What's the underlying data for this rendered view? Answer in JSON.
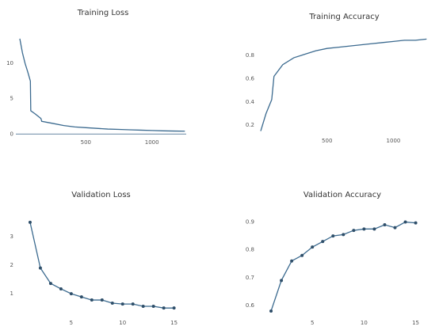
{
  "chart_data": [
    {
      "type": "line",
      "title": "Training Loss",
      "color": "#3b6a8f",
      "markers": false,
      "zeroline": true,
      "x": [
        0,
        20,
        40,
        60,
        80,
        83,
        120,
        160,
        166,
        250,
        333,
        416,
        500,
        583,
        666,
        750,
        833,
        916,
        1000,
        1083,
        1166,
        1250
      ],
      "values": [
        13.5,
        11.5,
        10,
        8.8,
        7.5,
        3.3,
        2.8,
        2.2,
        1.8,
        1.5,
        1.2,
        1.0,
        0.9,
        0.8,
        0.7,
        0.65,
        0.6,
        0.55,
        0.5,
        0.45,
        0.42,
        0.4
      ],
      "xlim": [
        0,
        1260
      ],
      "xticks": [
        500,
        1000
      ],
      "ylim": [
        -0.3,
        14.5
      ],
      "yticks": [
        0,
        5,
        10
      ]
    },
    {
      "type": "line",
      "title": "Training Accuracy",
      "color": "#3b6a8f",
      "markers": false,
      "zeroline": false,
      "x": [
        0,
        40,
        83,
        100,
        166,
        250,
        333,
        416,
        500,
        583,
        666,
        750,
        833,
        916,
        1000,
        1083,
        1166,
        1250
      ],
      "values": [
        0.15,
        0.3,
        0.42,
        0.62,
        0.72,
        0.78,
        0.81,
        0.84,
        0.86,
        0.87,
        0.88,
        0.89,
        0.9,
        0.91,
        0.92,
        0.93,
        0.93,
        0.94
      ],
      "xlim": [
        0,
        1260
      ],
      "xticks": [
        500,
        1000
      ],
      "ylim": [
        0.12,
        0.97
      ],
      "yticks": [
        0.2,
        0.4,
        0.6,
        0.8
      ]
    },
    {
      "type": "line",
      "title": "Validation Loss",
      "color": "#3b6a8f",
      "markers": true,
      "zeroline": false,
      "x": [
        1,
        2,
        3,
        4,
        5,
        6,
        7,
        8,
        9,
        10,
        11,
        12,
        13,
        14,
        15
      ],
      "values": [
        3.5,
        1.9,
        1.36,
        1.17,
        1.0,
        0.89,
        0.78,
        0.78,
        0.67,
        0.64,
        0.64,
        0.56,
        0.56,
        0.5,
        0.5
      ],
      "xlim": [
        0,
        15.8
      ],
      "xticks": [
        5,
        10,
        15
      ],
      "ylim": [
        0.2,
        3.8
      ],
      "yticks": [
        1,
        2,
        3
      ]
    },
    {
      "type": "line",
      "title": "Validation Accuracy",
      "color": "#3b6a8f",
      "markers": true,
      "zeroline": false,
      "x": [
        1,
        2,
        3,
        4,
        5,
        6,
        7,
        8,
        9,
        10,
        11,
        12,
        13,
        14,
        15
      ],
      "values": [
        0.58,
        0.69,
        0.76,
        0.78,
        0.81,
        0.83,
        0.85,
        0.855,
        0.87,
        0.875,
        0.875,
        0.89,
        0.88,
        0.9,
        0.897
      ],
      "xlim": [
        0,
        15.8
      ],
      "xticks": [
        5,
        10,
        15
      ],
      "ylim": [
        0.56,
        0.93
      ],
      "yticks": [
        0.6,
        0.7,
        0.8,
        0.9
      ]
    }
  ]
}
